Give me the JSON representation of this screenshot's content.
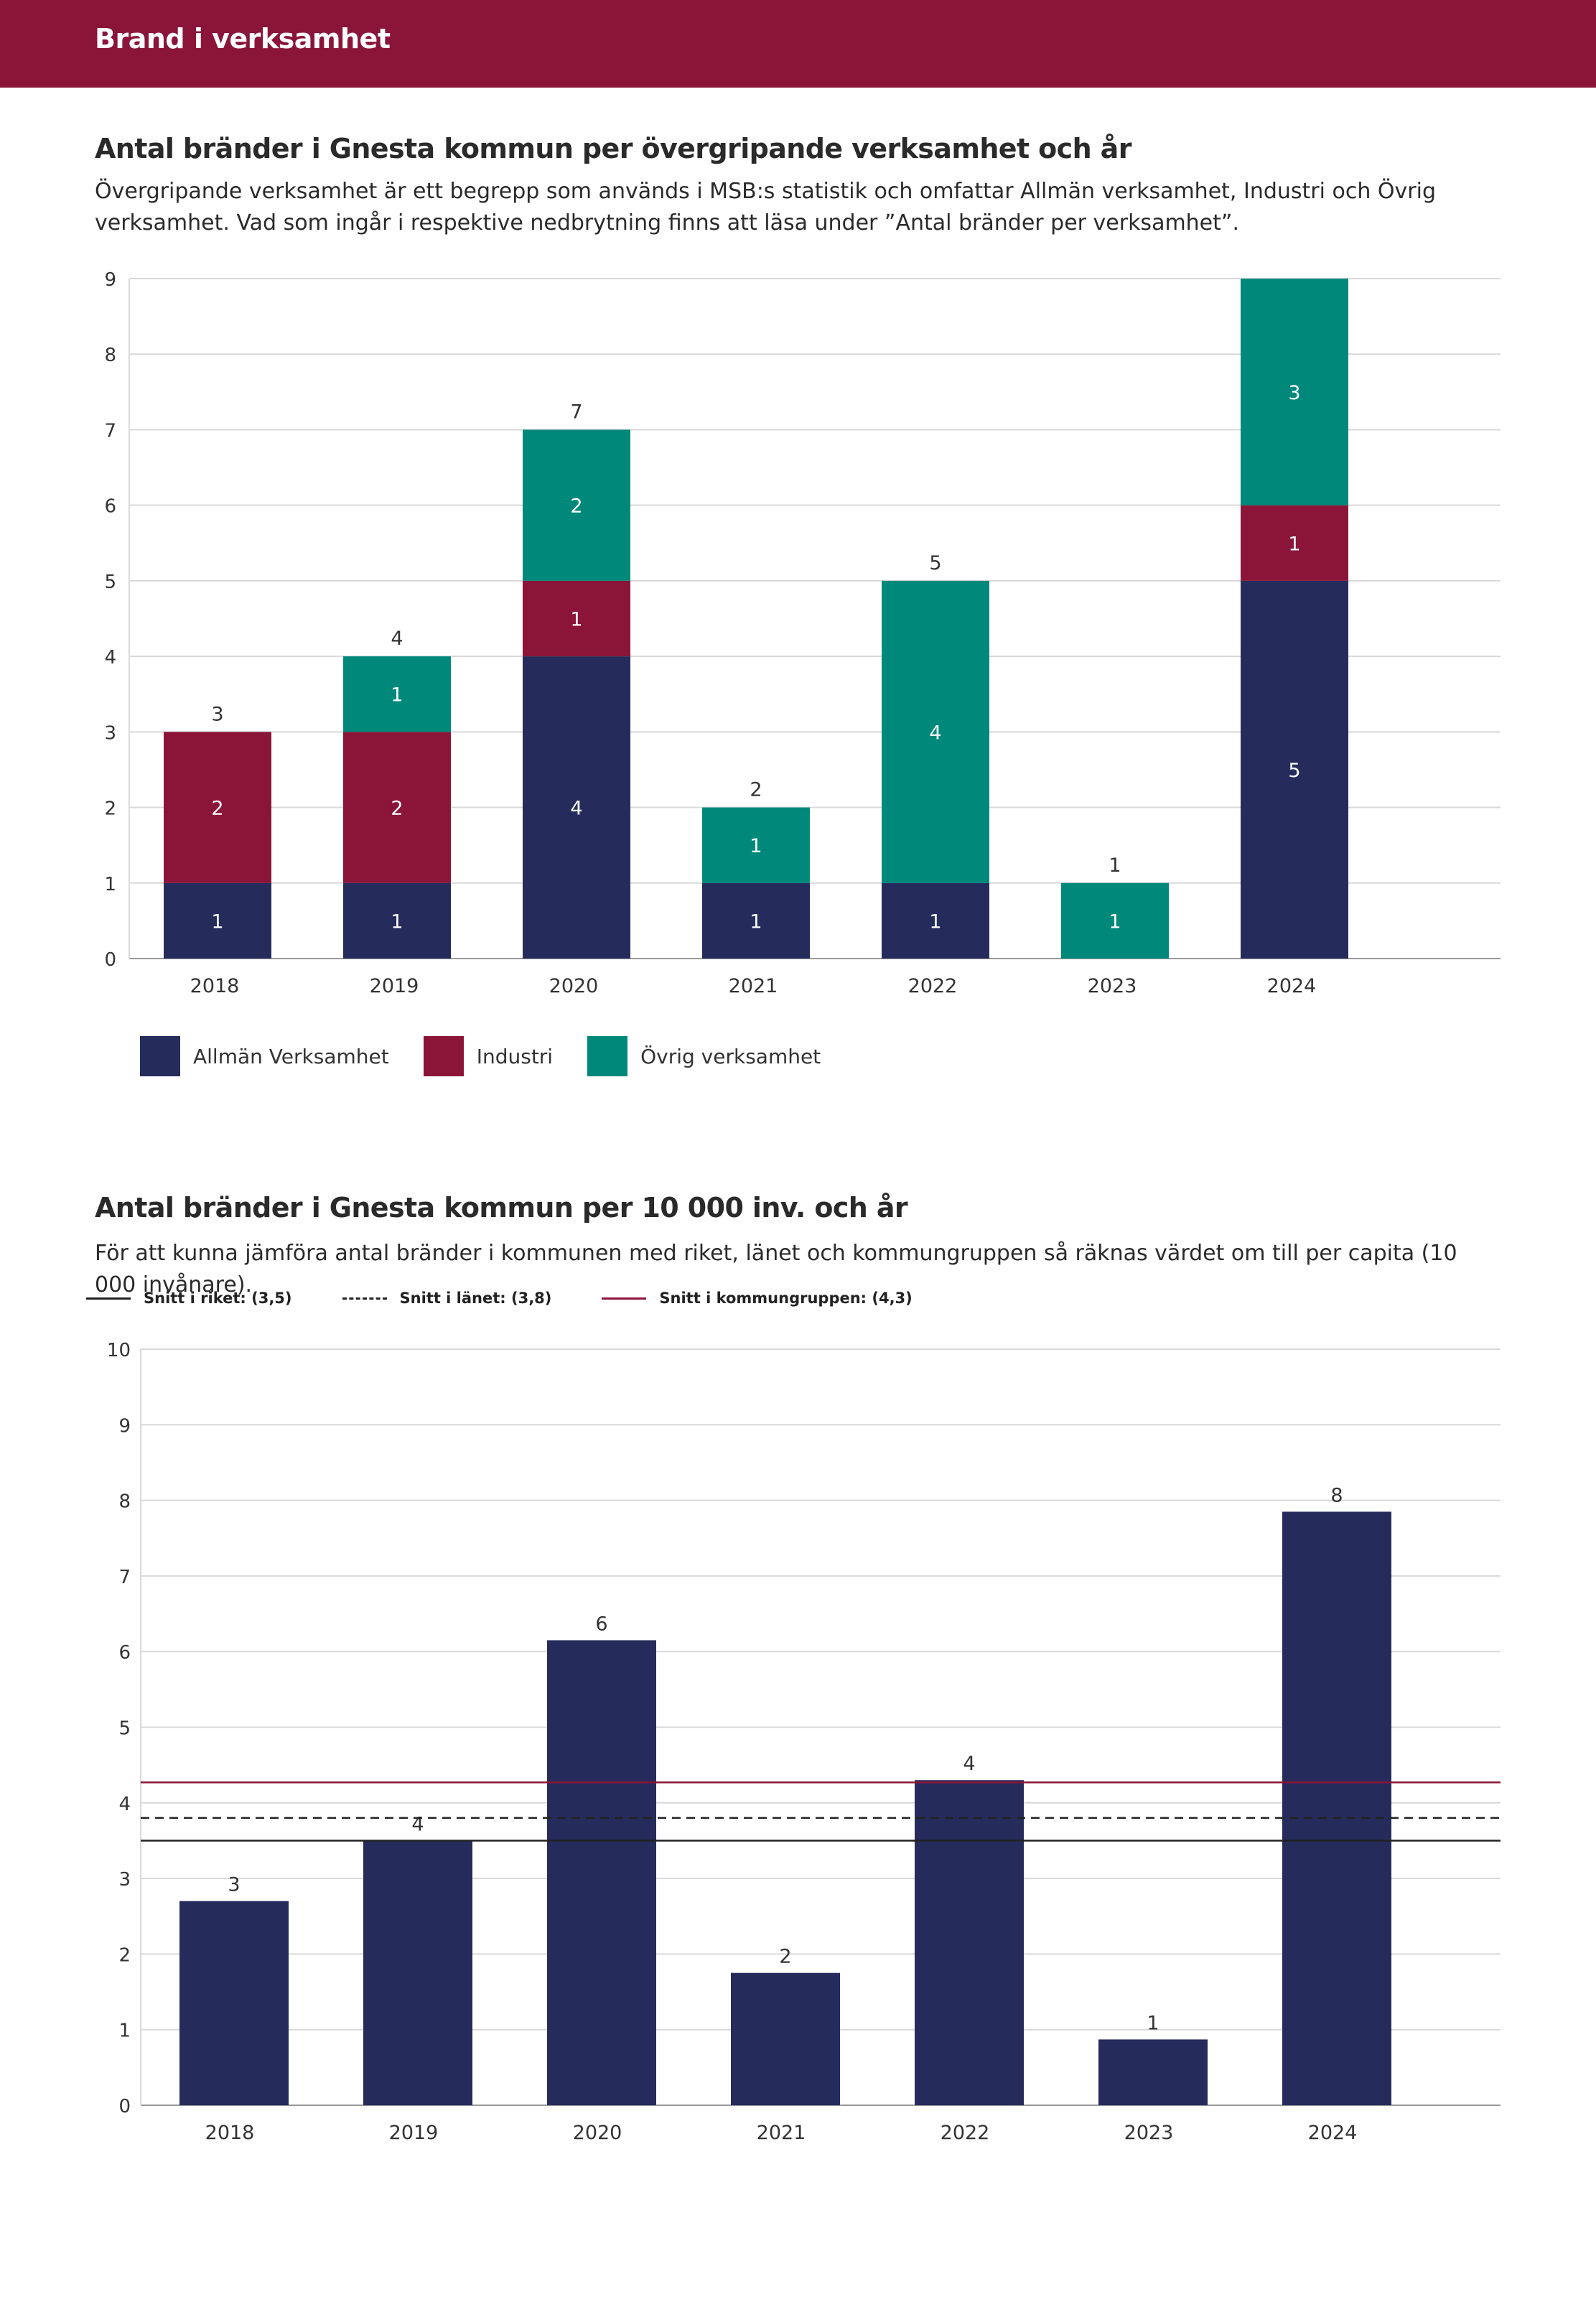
{
  "header": {
    "title": "Brand i verksamhet"
  },
  "section1": {
    "title": "Antal bränder i Gnesta kommun per övergripande verksamhet och år",
    "description": "Övergripande verksamhet är ett begrepp som används i MSB:s statistik och omfattar Allmän verksamhet, Industri och Övrig verksamhet. Vad som ingår i respektive nedbrytning finns att läsa under ”Antal bränder per verksamhet”."
  },
  "section2": {
    "title": "Antal bränder i Gnesta kommun per 10 000 inv. och år",
    "description": "För att kunna jämföra antal bränder i kommunen med riket, länet och kommungruppen så räknas värdet om till per capita (10 000 invånare)."
  },
  "colors": {
    "header": "#8a1538",
    "allman": "#252c5c",
    "industri": "#8b1538",
    "ovrig": "#00897b"
  },
  "chart_data": [
    {
      "type": "bar",
      "stacked": true,
      "title": "Antal bränder i Gnesta kommun per övergripande verksamhet och år",
      "categories": [
        "2018",
        "2019",
        "2020",
        "2021",
        "2022",
        "2023",
        "2024"
      ],
      "series": [
        {
          "name": "Allmän Verksamhet",
          "color": "#252c5c",
          "values": [
            1,
            1,
            4,
            1,
            1,
            0,
            5
          ]
        },
        {
          "name": "Industri",
          "color": "#8b1538",
          "values": [
            2,
            2,
            1,
            0,
            0,
            0,
            1
          ]
        },
        {
          "name": "Övrig verksamhet",
          "color": "#00897b",
          "values": [
            0,
            1,
            2,
            1,
            4,
            1,
            3
          ]
        }
      ],
      "totals": [
        3,
        4,
        7,
        2,
        5,
        1,
        9
      ],
      "total_labels": [
        "3",
        "4",
        "7",
        "2",
        "5",
        "1",
        ""
      ],
      "ylim": [
        0,
        9
      ],
      "yticks": [
        "0",
        "1",
        "2",
        "3",
        "4",
        "5",
        "6",
        "7",
        "8",
        "9"
      ],
      "legend_position": "bottom-left",
      "grid": true
    },
    {
      "type": "bar",
      "title": "Antal bränder i Gnesta kommun per 10 000 inv. och år",
      "categories": [
        "2018",
        "2019",
        "2020",
        "2021",
        "2022",
        "2023",
        "2024"
      ],
      "series": [
        {
          "name": "Gnesta kommun",
          "color": "#252c5c",
          "values": [
            2.7,
            3.5,
            6.15,
            1.75,
            4.3,
            0.87,
            7.85
          ]
        }
      ],
      "value_labels": [
        "3",
        "4",
        "6",
        "2",
        "4",
        "1",
        "8"
      ],
      "ylim": [
        0,
        10
      ],
      "yticks": [
        "0",
        "1",
        "2",
        "3",
        "4",
        "5",
        "6",
        "7",
        "8",
        "9",
        "10"
      ],
      "reference_lines": [
        {
          "label": "Snitt i riket: (3,5)",
          "value": 3.5,
          "style": "solid",
          "color": "#222222"
        },
        {
          "label": "Snitt i länet: (3,8)",
          "value": 3.8,
          "style": "dashed",
          "color": "#222222"
        },
        {
          "label": "Snitt i kommungruppen: (4,3)",
          "value": 4.27,
          "style": "solid",
          "color": "#8b1538"
        }
      ],
      "legend_position": "top-left",
      "grid": true
    }
  ]
}
